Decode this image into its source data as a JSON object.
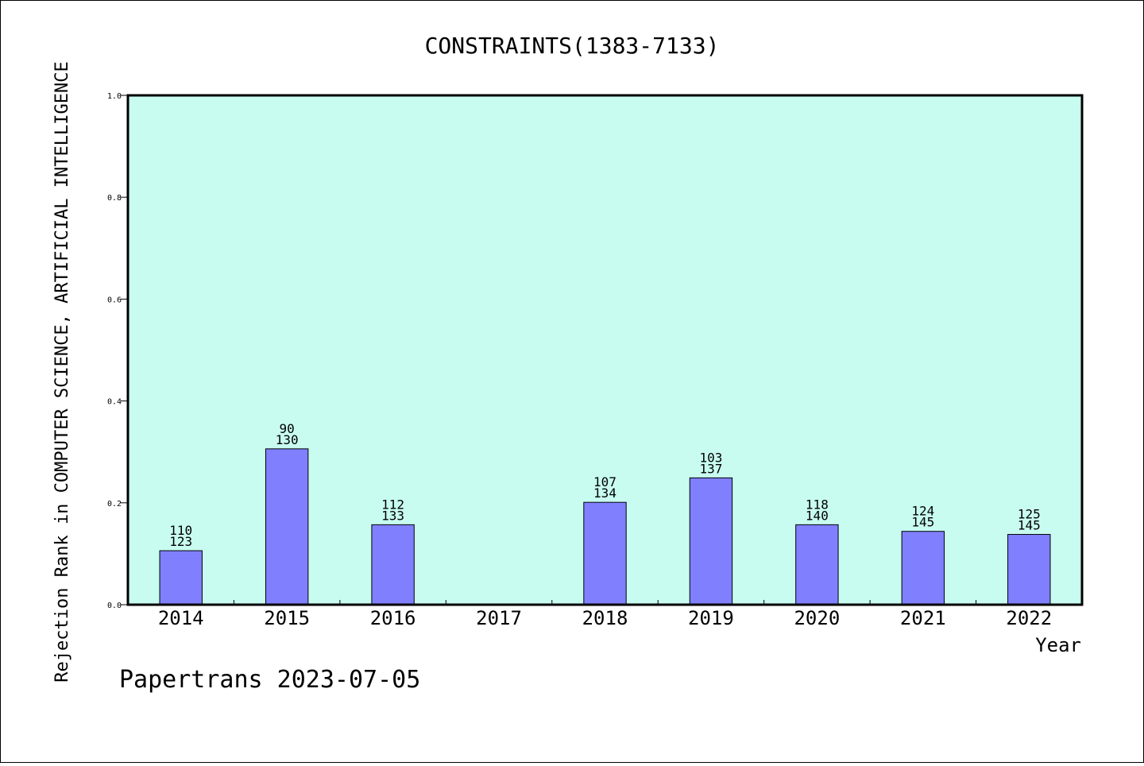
{
  "chart_data": {
    "type": "bar",
    "title": "CONSTRAINTS(1383-7133)",
    "xlabel": "Year",
    "ylabel": "Rejection Rank in COMPUTER SCIENCE, ARTIFICIAL INTELLIGENCE",
    "ylim": [
      0.0,
      1.0
    ],
    "yticks": [
      "0.0",
      "0.2",
      "0.4",
      "0.6",
      "0.8",
      "1.0"
    ],
    "categories": [
      "2014",
      "2015",
      "2016",
      "2017",
      "2018",
      "2019",
      "2020",
      "2021",
      "2022"
    ],
    "values": [
      0.106,
      0.306,
      0.157,
      null,
      0.201,
      0.249,
      0.157,
      0.144,
      0.138
    ],
    "labels_top": [
      "110",
      "90",
      "112",
      "",
      "107",
      "103",
      "118",
      "124",
      "125"
    ],
    "labels_bottom": [
      "123",
      "130",
      "133",
      "",
      "134",
      "137",
      "140",
      "145",
      "145"
    ],
    "bar_color": "#8080ff",
    "plot_background": "#c8fcf0",
    "grid": false,
    "legend": "none"
  },
  "footer": "Papertrans 2023-07-05"
}
